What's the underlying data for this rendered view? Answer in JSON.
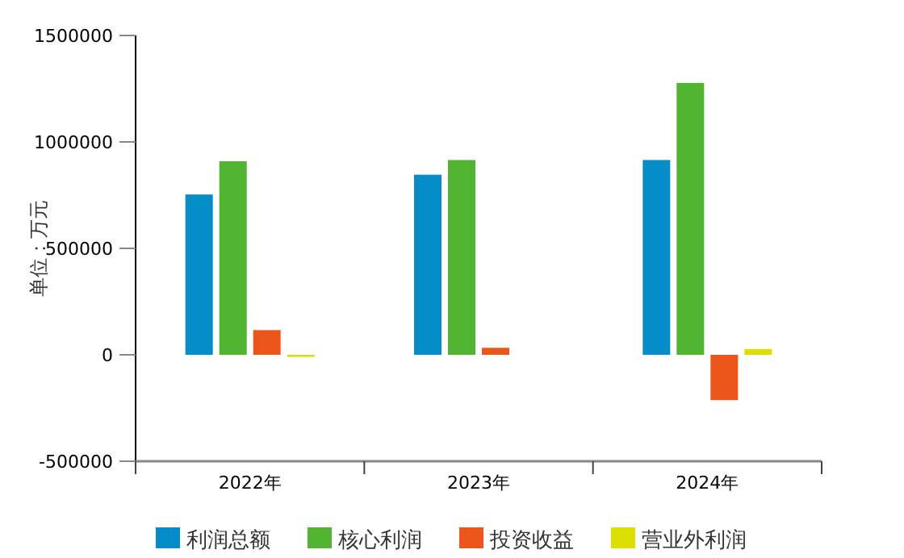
{
  "chart_data": {
    "type": "bar",
    "ylabel": "单位：万元",
    "categories": [
      "2022年",
      "2023年",
      "2024年"
    ],
    "series": [
      {
        "name": "利润总额",
        "color": "#058dc7",
        "values": [
          753000,
          846000,
          915000
        ]
      },
      {
        "name": "核心利润",
        "color": "#50b432",
        "values": [
          909000,
          915000,
          1277000
        ]
      },
      {
        "name": "投资收益",
        "color": "#ed561b",
        "values": [
          116000,
          33000,
          -213000
        ]
      },
      {
        "name": "营业外利润",
        "color": "#dddf00",
        "values": [
          -10000,
          null,
          27000
        ]
      }
    ],
    "ylim": [
      -500000,
      1500000
    ],
    "yticks": [
      -500000,
      0,
      500000,
      1000000,
      1500000
    ],
    "grid": false,
    "legend": "bottom"
  }
}
